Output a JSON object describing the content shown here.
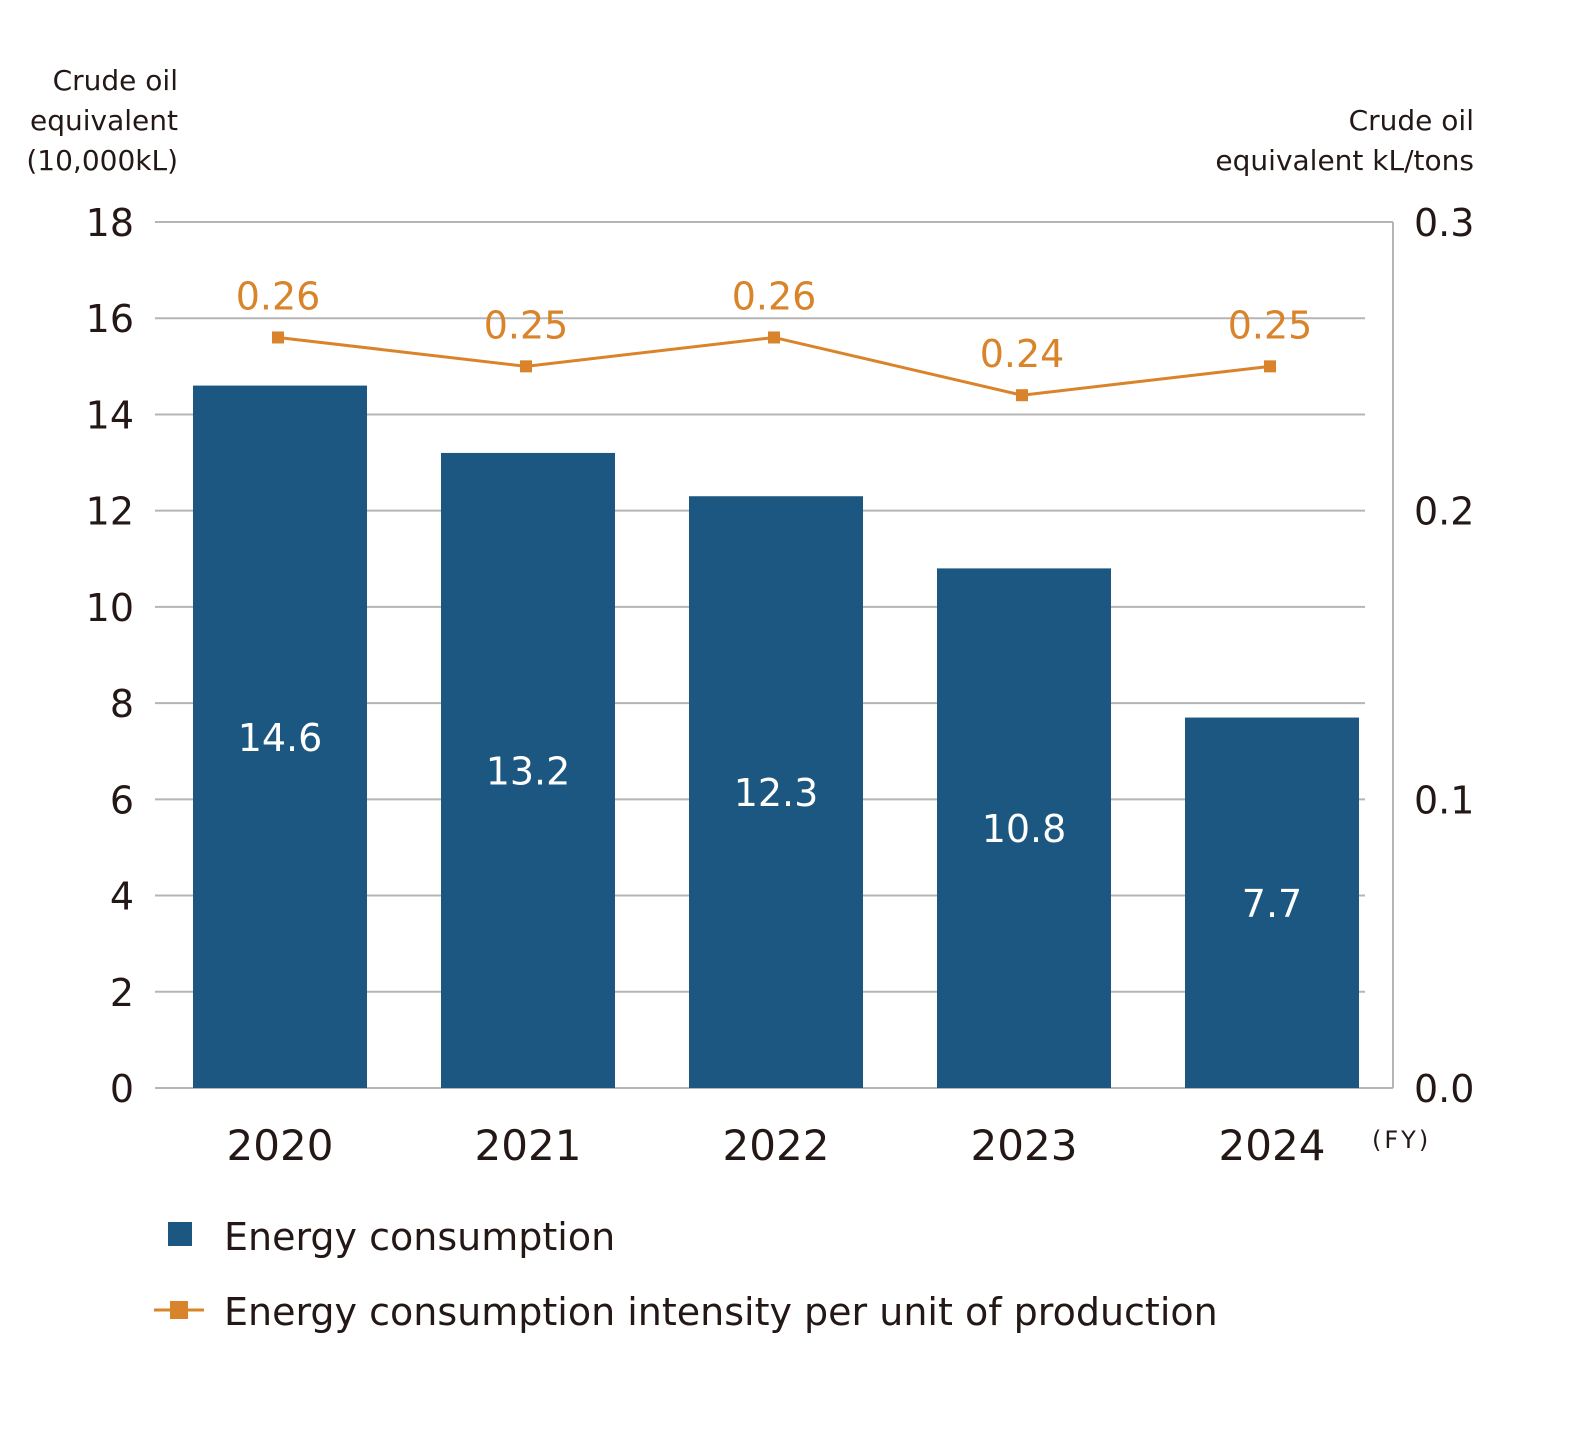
{
  "chart_data": {
    "type": "bar+line",
    "categories": [
      "2020",
      "2021",
      "2022",
      "2023",
      "2024"
    ],
    "x_unit_label": "(FY)",
    "left_axis": {
      "label_lines": [
        "Crude oil",
        "equivalent",
        "(10,000kL)"
      ],
      "range": [
        0,
        18
      ],
      "ticks": [
        "0",
        "2",
        "4",
        "6",
        "8",
        "10",
        "12",
        "14",
        "16",
        "18"
      ]
    },
    "right_axis": {
      "label_lines": [
        "Crude oil",
        "equivalent kL/tons"
      ],
      "range": [
        0,
        0.3
      ],
      "ticks": [
        "0.0",
        "0.1",
        "0.2",
        "0.3"
      ]
    },
    "series": [
      {
        "name": "Energy consumption",
        "type": "bar",
        "axis": "left",
        "values": [
          14.6,
          13.2,
          12.3,
          10.8,
          7.7
        ],
        "labels": [
          "14.6",
          "13.2",
          "12.3",
          "10.8",
          "7.7"
        ],
        "color": "#1b5780"
      },
      {
        "name": "Energy consumption intensity per  unit of production",
        "type": "line",
        "axis": "right",
        "values": [
          0.26,
          0.25,
          0.26,
          0.24,
          0.25
        ],
        "labels": [
          "0.26",
          "0.25",
          "0.26",
          "0.24",
          "0.25"
        ],
        "color": "#d9832a"
      }
    ],
    "grid": true,
    "legend_position": "bottom-left"
  }
}
